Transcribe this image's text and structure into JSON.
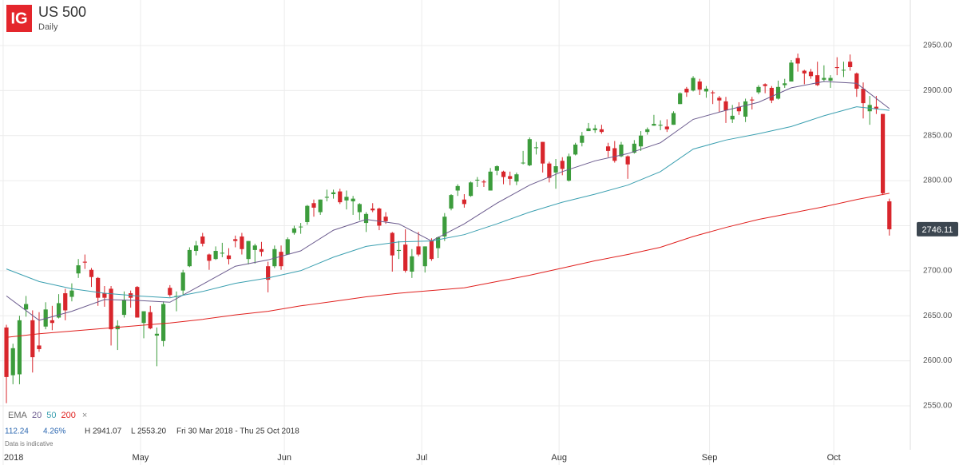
{
  "logo": "IG",
  "chart_data": {
    "type": "candlestick",
    "title": "US 500",
    "subtitle": "Daily",
    "up_color": "#3c9c3c",
    "down_color": "#d8262c",
    "grid": true,
    "ylim": [
      2501.2,
      3000.5
    ],
    "yticks": [
      {
        "value": 2550,
        "label": "2550.00"
      },
      {
        "value": 2600,
        "label": "2600.00"
      },
      {
        "value": 2650,
        "label": "2650.00"
      },
      {
        "value": 2700,
        "label": "2700.00"
      },
      {
        "value": 2750,
        "label": "2750.00"
      },
      {
        "value": 2800,
        "label": "2800.00"
      },
      {
        "value": 2850,
        "label": "2850.00"
      },
      {
        "value": 2900,
        "label": "2900.00"
      },
      {
        "value": 2950,
        "label": "2950.00"
      }
    ],
    "xlim": [
      -0.98,
      138.2
    ],
    "xticks": [
      {
        "value": -0.5,
        "label": "2018"
      },
      {
        "value": 20.5,
        "label": "May"
      },
      {
        "value": 42.5,
        "label": "Jun"
      },
      {
        "value": 63.5,
        "label": "Jul"
      },
      {
        "value": 84.5,
        "label": "Aug"
      },
      {
        "value": 107.5,
        "label": "Sep"
      },
      {
        "value": 126.5,
        "label": "Oct"
      }
    ],
    "ohlc": [
      [
        2637,
        2640,
        2553,
        2582
      ],
      [
        2584,
        2619,
        2574,
        2614
      ],
      [
        2585,
        2650,
        2574,
        2645
      ],
      [
        2657,
        2672,
        2649,
        2663
      ],
      [
        2645,
        2656,
        2587,
        2604
      ],
      [
        2617,
        2654,
        2610,
        2613
      ],
      [
        2638,
        2665,
        2635,
        2657
      ],
      [
        2645,
        2661,
        2634,
        2642
      ],
      [
        2648,
        2674,
        2647,
        2664
      ],
      [
        2675,
        2680,
        2645,
        2656
      ],
      [
        2671,
        2686,
        2666,
        2678
      ],
      [
        2697,
        2713,
        2692,
        2706
      ],
      [
        2710,
        2718,
        2702,
        2709
      ],
      [
        2701,
        2703,
        2682,
        2693
      ],
      [
        2692,
        2693,
        2661,
        2670
      ],
      [
        2675,
        2683,
        2660,
        2670
      ],
      [
        2680,
        2683,
        2617,
        2635
      ],
      [
        2635,
        2645,
        2612,
        2639
      ],
      [
        2651,
        2677,
        2648,
        2667
      ],
      [
        2675,
        2678,
        2659,
        2670
      ],
      [
        2682,
        2683,
        2648,
        2648
      ],
      [
        2642,
        2655,
        2625,
        2655
      ],
      [
        2654,
        2661,
        2635,
        2636
      ],
      [
        2628,
        2637,
        2594,
        2630
      ],
      [
        2622,
        2666,
        2616,
        2663
      ],
      [
        2681,
        2684,
        2671,
        2673
      ],
      [
        2671,
        2677,
        2655,
        2672
      ],
      [
        2678,
        2701,
        2673,
        2698
      ],
      [
        2705,
        2726,
        2704,
        2723
      ],
      [
        2722,
        2733,
        2717,
        2728
      ],
      [
        2738,
        2742,
        2727,
        2730
      ],
      [
        2718,
        2719,
        2701,
        2711
      ],
      [
        2713,
        2727,
        2712,
        2722
      ],
      [
        2719,
        2731,
        2715,
        2720
      ],
      [
        2717,
        2725,
        2707,
        2713
      ],
      [
        2735,
        2739,
        2726,
        2733
      ],
      [
        2738,
        2742,
        2718,
        2724
      ],
      [
        2713,
        2733,
        2707,
        2733
      ],
      [
        2723,
        2730,
        2708,
        2728
      ],
      [
        2724,
        2732,
        2716,
        2721
      ],
      [
        2705,
        2710,
        2676,
        2690
      ],
      [
        2705,
        2728,
        2703,
        2724
      ],
      [
        2721,
        2728,
        2701,
        2705
      ],
      [
        2718,
        2737,
        2718,
        2735
      ],
      [
        2742,
        2750,
        2740,
        2747
      ],
      [
        2749,
        2753,
        2741,
        2749
      ],
      [
        2754,
        2773,
        2751,
        2772
      ],
      [
        2775,
        2779,
        2760,
        2770
      ],
      [
        2765,
        2779,
        2762,
        2779
      ],
      [
        2781,
        2790,
        2777,
        2782
      ],
      [
        2785,
        2790,
        2780,
        2787
      ],
      [
        2788,
        2791,
        2774,
        2776
      ],
      [
        2778,
        2789,
        2768,
        2782
      ],
      [
        2777,
        2783,
        2762,
        2780
      ],
      [
        2765,
        2775,
        2756,
        2774
      ],
      [
        2753,
        2765,
        2743,
        2763
      ],
      [
        2769,
        2775,
        2765,
        2767
      ],
      [
        2769,
        2770,
        2745,
        2750
      ],
      [
        2760,
        2765,
        2752,
        2755
      ],
      [
        2742,
        2743,
        2699,
        2717
      ],
      [
        2722,
        2733,
        2713,
        2723
      ],
      [
        2729,
        2746,
        2698,
        2700
      ],
      [
        2699,
        2724,
        2692,
        2716
      ],
      [
        2727,
        2743,
        2716,
        2718
      ],
      [
        2705,
        2727,
        2698,
        2727
      ],
      [
        2733,
        2736,
        2711,
        2713
      ],
      [
        2725,
        2738,
        2714,
        2737
      ],
      [
        2738,
        2764,
        2733,
        2760
      ],
      [
        2769,
        2785,
        2767,
        2784
      ],
      [
        2789,
        2796,
        2783,
        2794
      ],
      [
        2779,
        2785,
        2770,
        2774
      ],
      [
        2783,
        2799,
        2782,
        2798
      ],
      [
        2801,
        2804,
        2793,
        2801
      ],
      [
        2799,
        2801,
        2793,
        2798
      ],
      [
        2789,
        2814,
        2789,
        2810
      ],
      [
        2811,
        2817,
        2806,
        2816
      ],
      [
        2810,
        2811,
        2796,
        2804
      ],
      [
        2805,
        2810,
        2795,
        2802
      ],
      [
        2799,
        2809,
        2795,
        2807
      ],
      [
        2820,
        2833,
        2818,
        2820
      ],
      [
        2817,
        2848,
        2816,
        2846
      ],
      [
        2836,
        2843,
        2829,
        2837
      ],
      [
        2843,
        2843,
        2809,
        2819
      ],
      [
        2819,
        2821,
        2798,
        2803
      ],
      [
        2809,
        2824,
        2791,
        2816
      ],
      [
        2822,
        2826,
        2806,
        2813
      ],
      [
        2800,
        2830,
        2799,
        2827
      ],
      [
        2829,
        2842,
        2828,
        2840
      ],
      [
        2842,
        2854,
        2838,
        2850
      ],
      [
        2855,
        2864,
        2855,
        2858
      ],
      [
        2856,
        2862,
        2853,
        2858
      ],
      [
        2857,
        2862,
        2852,
        2854
      ],
      [
        2838,
        2842,
        2826,
        2833
      ],
      [
        2836,
        2844,
        2820,
        2822
      ],
      [
        2827,
        2843,
        2826,
        2840
      ],
      [
        2827,
        2828,
        2802,
        2818
      ],
      [
        2831,
        2845,
        2830,
        2841
      ],
      [
        2838,
        2855,
        2833,
        2850
      ],
      [
        2854,
        2859,
        2851,
        2857
      ],
      [
        2861,
        2873,
        2861,
        2863
      ],
      [
        2861,
        2867,
        2856,
        2862
      ],
      [
        2860,
        2868,
        2854,
        2857
      ],
      [
        2862,
        2877,
        2862,
        2875
      ],
      [
        2885,
        2898,
        2885,
        2897
      ],
      [
        2902,
        2904,
        2893,
        2898
      ],
      [
        2900,
        2916,
        2899,
        2914
      ],
      [
        2910,
        2913,
        2895,
        2901
      ],
      [
        2899,
        2905,
        2892,
        2902
      ],
      [
        2898,
        2900,
        2885,
        2897
      ],
      [
        2892,
        2894,
        2876,
        2889
      ],
      [
        2888,
        2893,
        2864,
        2878
      ],
      [
        2868,
        2884,
        2864,
        2872
      ],
      [
        2882,
        2887,
        2873,
        2877
      ],
      [
        2871,
        2891,
        2865,
        2888
      ],
      [
        2890,
        2893,
        2879,
        2889
      ],
      [
        2898,
        2906,
        2896,
        2904
      ],
      [
        2907,
        2908,
        2897,
        2905
      ],
      [
        2903,
        2905,
        2886,
        2889
      ],
      [
        2891,
        2911,
        2890,
        2904
      ],
      [
        2906,
        2913,
        2903,
        2908
      ],
      [
        2910,
        2934,
        2910,
        2931
      ],
      [
        2936,
        2941,
        2921,
        2930
      ],
      [
        2922,
        2923,
        2907,
        2919
      ],
      [
        2921,
        2924,
        2913,
        2916
      ],
      [
        2917,
        2932,
        2905,
        2906
      ],
      [
        2912,
        2928,
        2910,
        2914
      ],
      [
        2911,
        2917,
        2903,
        2914
      ],
      [
        2926,
        2937,
        2917,
        2925
      ],
      [
        2923,
        2932,
        2915,
        2923
      ],
      [
        2932,
        2940,
        2922,
        2926
      ],
      [
        2919,
        2920,
        2893,
        2902
      ],
      [
        2902,
        2909,
        2869,
        2886
      ],
      [
        2877,
        2894,
        2862,
        2884
      ],
      [
        2882,
        2894,
        2874,
        2880
      ],
      [
        2874,
        2874,
        2784,
        2786
      ],
      [
        2777,
        2780,
        2739,
        2746
      ]
    ],
    "ema_x": [
      0,
      5,
      10,
      15,
      20,
      25,
      30,
      35,
      40,
      45,
      50,
      55,
      60,
      65,
      70,
      75,
      80,
      85,
      90,
      95,
      100,
      105,
      110,
      115,
      120,
      125,
      130,
      135
    ],
    "legend_title": "EMA",
    "legend_close": "×",
    "series": [
      {
        "name": "20",
        "color": "#6b5b8e",
        "values": [
          2672,
          2645,
          2655,
          2668,
          2667,
          2665,
          2685,
          2705,
          2712,
          2722,
          2745,
          2757,
          2752,
          2733,
          2752,
          2775,
          2795,
          2810,
          2822,
          2830,
          2842,
          2868,
          2878,
          2887,
          2903,
          2910,
          2908,
          2880
        ]
      },
      {
        "name": "50",
        "color": "#3a9fb0",
        "values": [
          2702,
          2688,
          2680,
          2675,
          2672,
          2670,
          2677,
          2686,
          2692,
          2700,
          2715,
          2727,
          2732,
          2733,
          2740,
          2752,
          2765,
          2776,
          2785,
          2795,
          2810,
          2835,
          2845,
          2852,
          2860,
          2872,
          2882,
          2878
        ]
      },
      {
        "name": "200",
        "color": "#e0201e",
        "values": [
          2626,
          2630,
          2633,
          2636,
          2639,
          2642,
          2646,
          2651,
          2655,
          2661,
          2666,
          2671,
          2675,
          2678,
          2681,
          2688,
          2695,
          2703,
          2711,
          2718,
          2726,
          2738,
          2748,
          2757,
          2764,
          2771,
          2779,
          2786
        ]
      }
    ],
    "last_price": 2746.11,
    "info": {
      "change": "112.24",
      "change_pct": "4.26%",
      "high": "H 2941.07",
      "low": "L 2553.20",
      "range": "Fri 30 Mar 2018 - Thu 25 Oct 2018",
      "note": "Data is indicative"
    }
  }
}
